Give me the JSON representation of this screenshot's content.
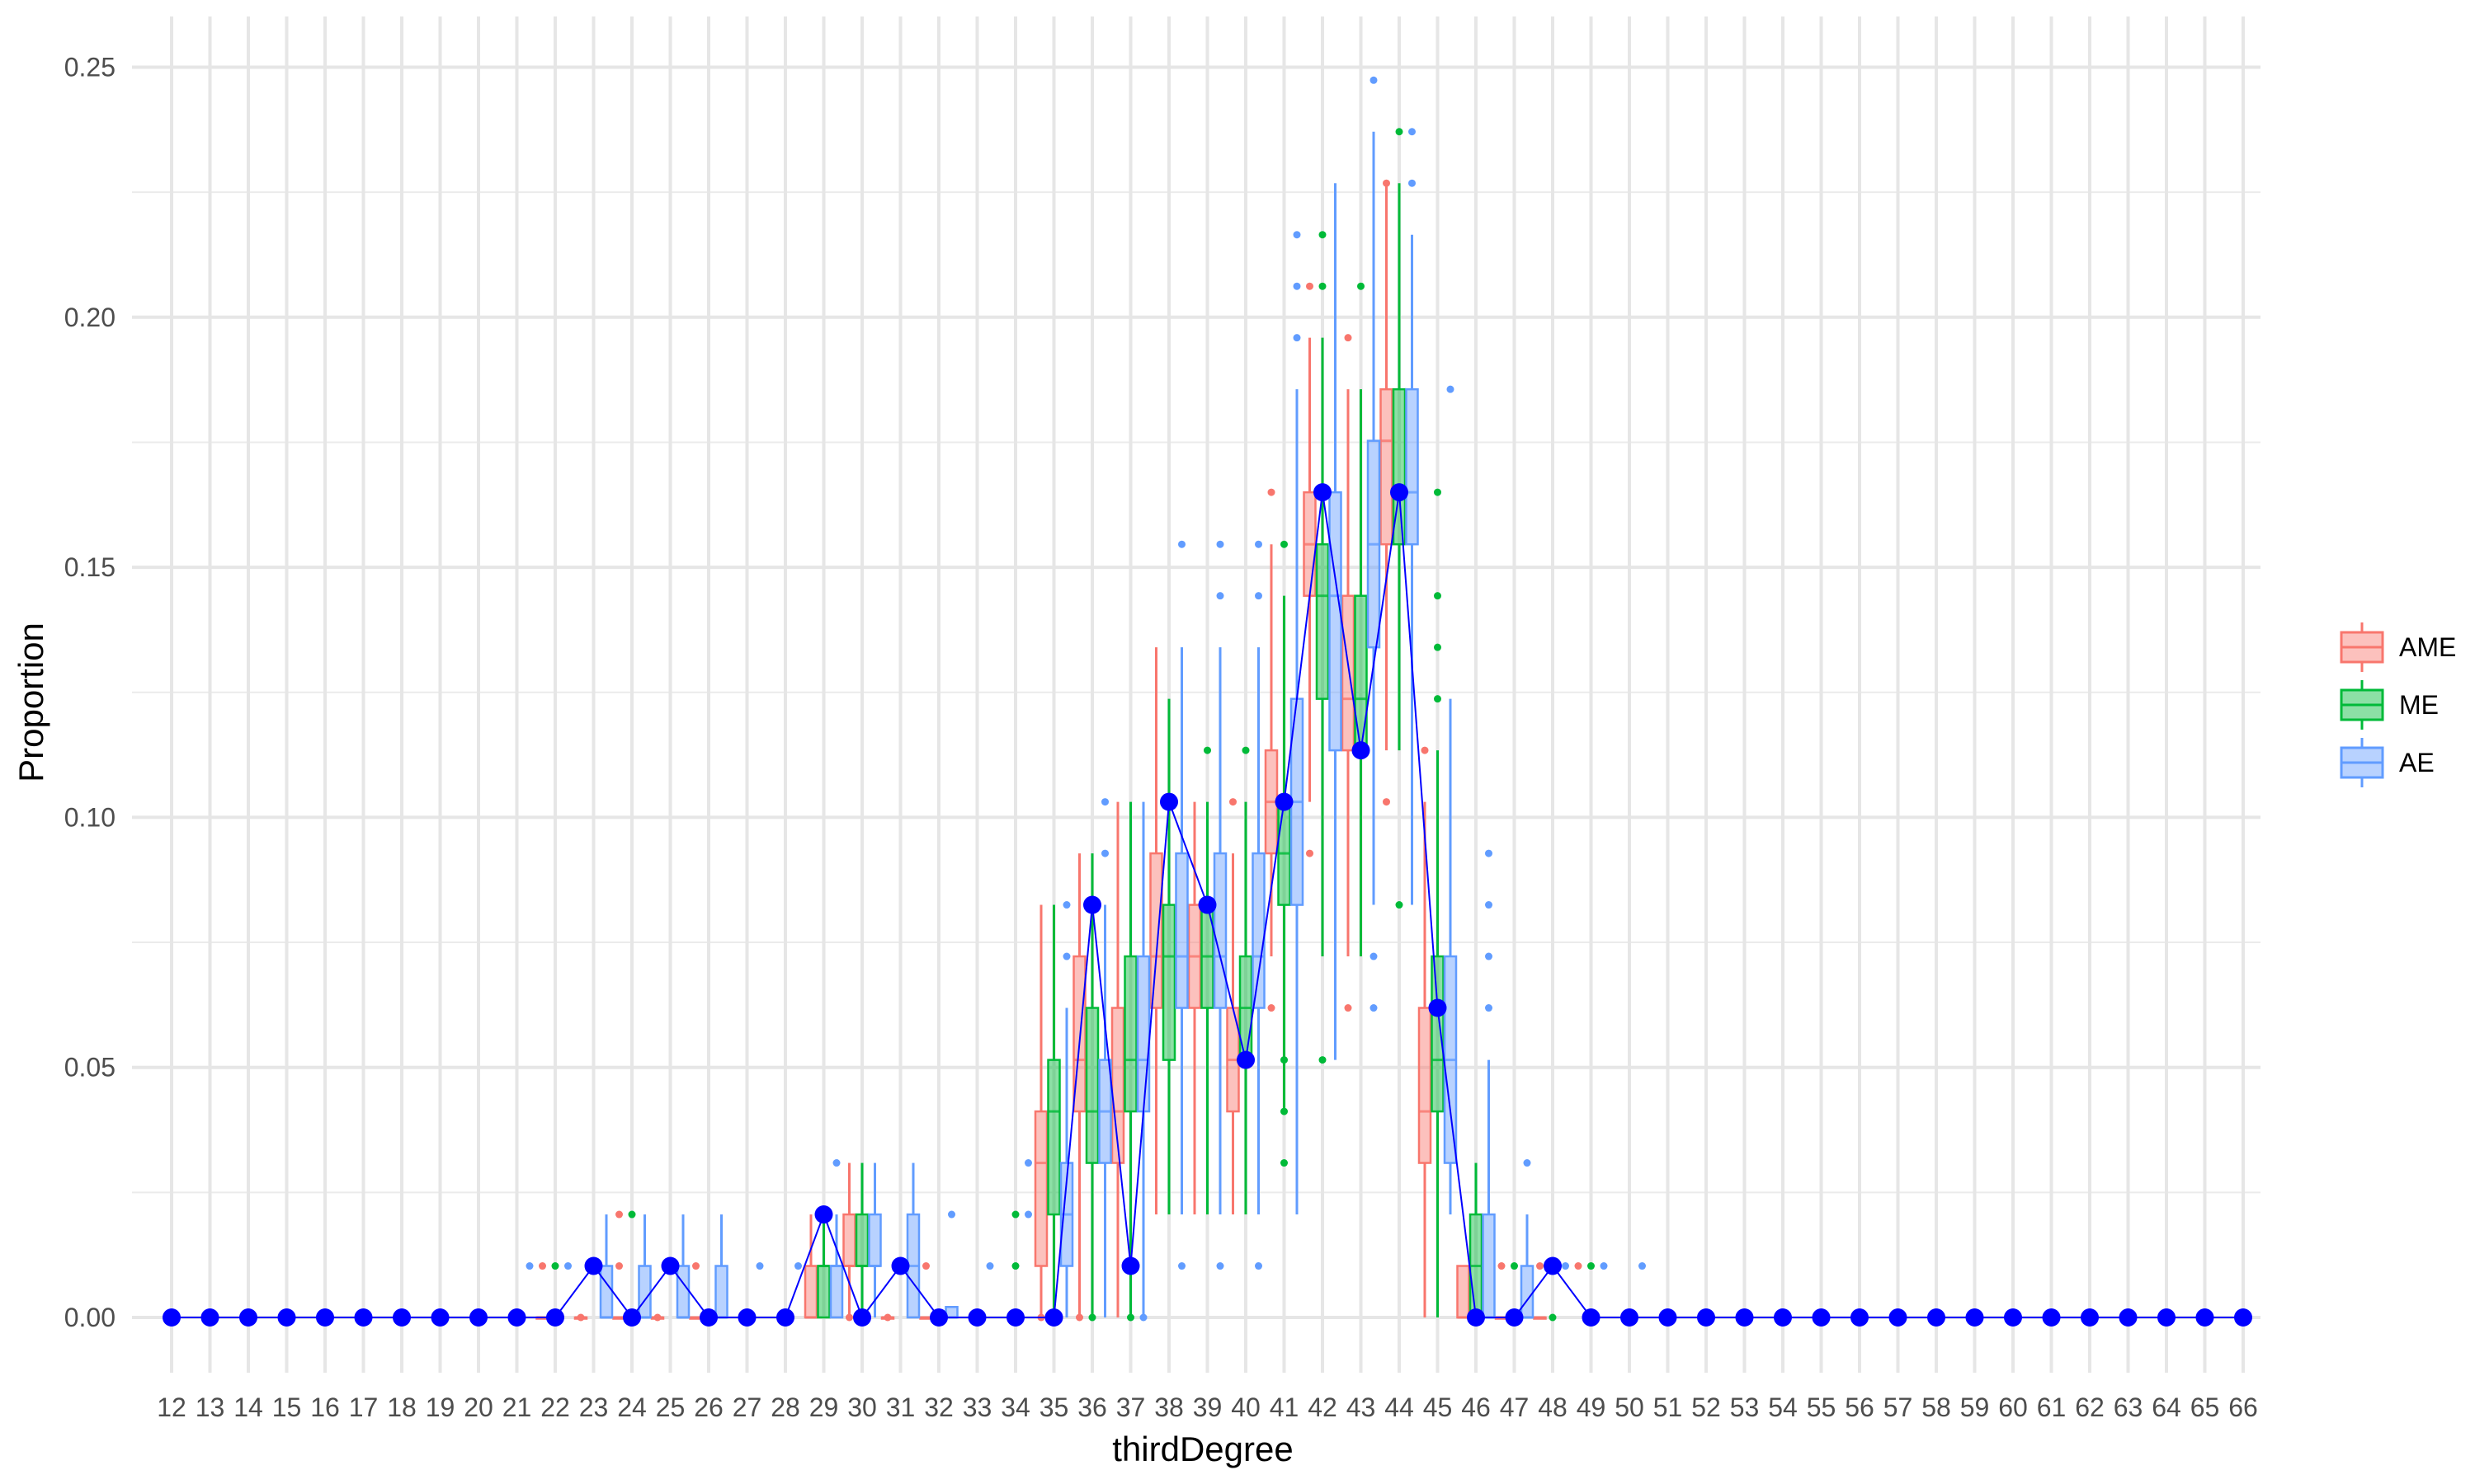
{
  "chart_data": {
    "type": "box",
    "xlabel": "thirdDegree",
    "ylabel": "Proportion",
    "ylim": [
      -0.012,
      0.255
    ],
    "y_ticks": [
      "0.00",
      "0.05",
      "0.10",
      "0.15",
      "0.20",
      "0.25"
    ],
    "y_tick_values": [
      0,
      0.05,
      0.1,
      0.15,
      0.2,
      0.25
    ],
    "grid": true,
    "legend_position": "right",
    "categories": [
      "12",
      "13",
      "14",
      "15",
      "16",
      "17",
      "18",
      "19",
      "20",
      "21",
      "22",
      "23",
      "24",
      "25",
      "26",
      "27",
      "28",
      "29",
      "30",
      "31",
      "32",
      "33",
      "34",
      "35",
      "36",
      "37",
      "38",
      "39",
      "40",
      "41",
      "42",
      "43",
      "44",
      "45",
      "46",
      "47",
      "48",
      "49",
      "50",
      "51",
      "52",
      "53",
      "54",
      "55",
      "56",
      "57",
      "58",
      "59",
      "60",
      "61",
      "62",
      "63",
      "64",
      "65",
      "66"
    ],
    "series": [
      {
        "name": "AME",
        "color": "#F8766D",
        "boxes": {
          "22": [
            0.0,
            0.0,
            0.0,
            0.0,
            0.0
          ],
          "23": [
            0.0,
            0.0,
            0.0,
            0.0,
            0.0
          ],
          "24": [
            0.0,
            0.0,
            0.0,
            0.0,
            0.0
          ],
          "25": [
            0.0,
            0.0,
            0.0,
            0.0,
            0.0
          ],
          "26": [
            0.0,
            0.0,
            0.0,
            0.0,
            0.0
          ],
          "29": [
            0.0,
            0.0,
            0.0,
            0.0103,
            0.0206
          ],
          "30": [
            0.0,
            0.0103,
            0.0103,
            0.0206,
            0.0309
          ],
          "31": [
            0.0,
            0.0,
            0.0,
            0.0,
            0.0
          ],
          "32": [
            0.0,
            0.0,
            0.0,
            0.0,
            0.0
          ],
          "35": [
            0.0,
            0.0103,
            0.0309,
            0.0412,
            0.0825
          ],
          "36": [
            0.0,
            0.0412,
            0.0515,
            0.0722,
            0.0928
          ],
          "37": [
            0.0,
            0.0309,
            0.0412,
            0.0619,
            0.1031
          ],
          "38": [
            0.0206,
            0.0619,
            0.0722,
            0.0928,
            0.134
          ],
          "39": [
            0.0206,
            0.0619,
            0.0722,
            0.0825,
            0.1031
          ],
          "40": [
            0.0206,
            0.0412,
            0.0515,
            0.0619,
            0.0928
          ],
          "41": [
            0.0722,
            0.0928,
            0.1031,
            0.1134,
            0.1546
          ],
          "42": [
            0.1031,
            0.1443,
            0.1546,
            0.165,
            0.1959
          ],
          "43": [
            0.0722,
            0.1134,
            0.1237,
            0.1443,
            0.1856
          ],
          "44": [
            0.1134,
            0.1546,
            0.1753,
            0.1856,
            0.2268
          ],
          "45": [
            0.0,
            0.0309,
            0.0412,
            0.0619,
            0.1031
          ],
          "46": [
            0.0,
            0.0,
            0.0,
            0.0103,
            0.0103
          ],
          "47": [
            0.0,
            0.0,
            0.0,
            0.0,
            0.0
          ],
          "48": [
            0.0,
            0.0,
            0.0,
            0.0,
            0.0
          ]
        },
        "outliers": {
          "22": [
            0.0103
          ],
          "23": [
            0.0
          ],
          "24": [
            0.0103,
            0.0206
          ],
          "25": [
            0.0
          ],
          "26": [
            0.0103
          ],
          "30": [
            0.0
          ],
          "31": [
            0.0
          ],
          "32": [
            0.0103
          ],
          "35": [
            0.0
          ],
          "36": [
            0.0
          ],
          "40": [
            0.1031
          ],
          "41": [
            0.0619,
            0.165
          ],
          "42": [
            0.0928,
            0.2062
          ],
          "43": [
            0.0619,
            0.1959
          ],
          "44": [
            0.1031,
            0.2268
          ],
          "45": [
            0.1134
          ],
          "47": [
            0.0103
          ],
          "48": [
            0.0103
          ],
          "49": [
            0.0103
          ]
        }
      },
      {
        "name": "ME",
        "color": "#00BA38",
        "boxes": {
          "29": [
            0.0,
            0.0,
            0.0103,
            0.0103,
            0.0206
          ],
          "30": [
            0.0,
            0.0103,
            0.0103,
            0.0206,
            0.0309
          ],
          "35": [
            0.0,
            0.0206,
            0.0412,
            0.0515,
            0.0825
          ],
          "36": [
            0.0,
            0.0309,
            0.0412,
            0.0619,
            0.0928
          ],
          "37": [
            0.0,
            0.0412,
            0.0515,
            0.0722,
            0.1031
          ],
          "38": [
            0.0206,
            0.0515,
            0.0722,
            0.0825,
            0.1237
          ],
          "39": [
            0.0206,
            0.0619,
            0.0722,
            0.0825,
            0.1031
          ],
          "40": [
            0.0206,
            0.0515,
            0.0619,
            0.0722,
            0.1031
          ],
          "41": [
            0.0412,
            0.0825,
            0.0928,
            0.1031,
            0.1443
          ],
          "42": [
            0.0722,
            0.1237,
            0.1443,
            0.1546,
            0.1959
          ],
          "43": [
            0.0722,
            0.1134,
            0.1237,
            0.1443,
            0.1856
          ],
          "44": [
            0.1134,
            0.1546,
            0.165,
            0.1856,
            0.2268
          ],
          "45": [
            0.0,
            0.0412,
            0.0515,
            0.0722,
            0.1134
          ],
          "46": [
            0.0,
            0.0,
            0.0103,
            0.0206,
            0.0309
          ]
        },
        "outliers": {
          "22": [
            0.0103
          ],
          "24": [
            0.0206
          ],
          "34": [
            0.0103,
            0.0206
          ],
          "35": [
            0.0
          ],
          "36": [
            0.0
          ],
          "37": [
            0.0
          ],
          "39": [
            0.1134
          ],
          "40": [
            0.1134
          ],
          "41": [
            0.0309,
            0.0412,
            0.0515,
            0.1546
          ],
          "42": [
            0.0515,
            0.2062,
            0.2165
          ],
          "43": [
            0.2062
          ],
          "44": [
            0.0825,
            0.2371
          ],
          "45": [
            0.1237,
            0.134,
            0.1443,
            0.165
          ],
          "47": [
            0.0103
          ],
          "48": [
            0.0
          ],
          "49": [
            0.0103
          ]
        }
      },
      {
        "name": "AE",
        "color": "#619CFF",
        "boxes": {
          "23": [
            0.0,
            0.0,
            0.0,
            0.0103,
            0.0206
          ],
          "24": [
            0.0,
            0.0,
            0.0,
            0.0103,
            0.0206
          ],
          "25": [
            0.0,
            0.0,
            0.0,
            0.0103,
            0.0206
          ],
          "26": [
            0.0,
            0.0,
            0.0,
            0.0103,
            0.0206
          ],
          "29": [
            0.0,
            0.0,
            0.0103,
            0.0103,
            0.0206
          ],
          "30": [
            0.0,
            0.0103,
            0.0103,
            0.0206,
            0.0309
          ],
          "31": [
            0.0,
            0.0,
            0.0103,
            0.0206,
            0.0309
          ],
          "32": [
            0.0,
            0.0,
            0.0,
            0.0021,
            0.0021
          ],
          "35": [
            0.0,
            0.0103,
            0.0206,
            0.0309,
            0.0619
          ],
          "36": [
            0.0,
            0.0309,
            0.0412,
            0.0515,
            0.0825
          ],
          "37": [
            0.0,
            0.0412,
            0.0515,
            0.0722,
            0.1031
          ],
          "38": [
            0.0206,
            0.0619,
            0.0722,
            0.0928,
            0.134
          ],
          "39": [
            0.0206,
            0.0619,
            0.0722,
            0.0928,
            0.134
          ],
          "40": [
            0.0206,
            0.0619,
            0.0722,
            0.0928,
            0.134
          ],
          "41": [
            0.0206,
            0.0825,
            0.1031,
            0.1237,
            0.1856
          ],
          "42": [
            0.0515,
            0.1134,
            0.1443,
            0.165,
            0.2268
          ],
          "43": [
            0.0825,
            0.134,
            0.1546,
            0.1753,
            0.2371
          ],
          "44": [
            0.0825,
            0.1546,
            0.165,
            0.1856,
            0.2165
          ],
          "45": [
            0.0206,
            0.0309,
            0.0515,
            0.0722,
            0.1237
          ],
          "46": [
            0.0,
            0.0,
            0.0,
            0.0206,
            0.0515
          ],
          "47": [
            0.0,
            0.0,
            0.0,
            0.0103,
            0.0206
          ]
        },
        "outliers": {
          "21": [
            0.0103
          ],
          "22": [
            0.0103
          ],
          "27": [
            0.0103
          ],
          "28": [
            0.0103
          ],
          "29": [
            0.0309
          ],
          "32": [
            0.0206
          ],
          "33": [
            0.0103
          ],
          "34": [
            0.0206,
            0.0309
          ],
          "35": [
            0.0722,
            0.0825
          ],
          "36": [
            0.0928,
            0.1031
          ],
          "37": [
            0.0
          ],
          "38": [
            0.0103,
            0.1546
          ],
          "39": [
            0.0103,
            0.1443,
            0.1546
          ],
          "40": [
            0.0103,
            0.1443,
            0.1546
          ],
          "41": [
            0.1959,
            0.2062,
            0.2165
          ],
          "43": [
            0.0619,
            0.0722,
            0.2474
          ],
          "44": [
            0.2268,
            0.2371
          ],
          "45": [
            0.1856
          ],
          "46": [
            0.0619,
            0.0722,
            0.0825,
            0.0928
          ],
          "47": [
            0.0309
          ],
          "48": [
            0.0103
          ],
          "49": [
            0.0103
          ],
          "50": [
            0.0103
          ]
        }
      }
    ],
    "reference_line": {
      "color": "#0000FF",
      "values": [
        0,
        0,
        0,
        0,
        0,
        0,
        0,
        0,
        0,
        0,
        0,
        0.0103,
        0,
        0.0103,
        0,
        0,
        0,
        0.0206,
        0,
        0.0103,
        0,
        0,
        0,
        0,
        0.0825,
        0.0103,
        0.1031,
        0.0825,
        0.0515,
        0.1031,
        0.165,
        0.1134,
        0.165,
        0.0619,
        0,
        0,
        0.0103,
        0,
        0,
        0,
        0,
        0,
        0,
        0,
        0,
        0,
        0,
        0,
        0,
        0,
        0,
        0,
        0,
        0,
        0
      ]
    }
  }
}
